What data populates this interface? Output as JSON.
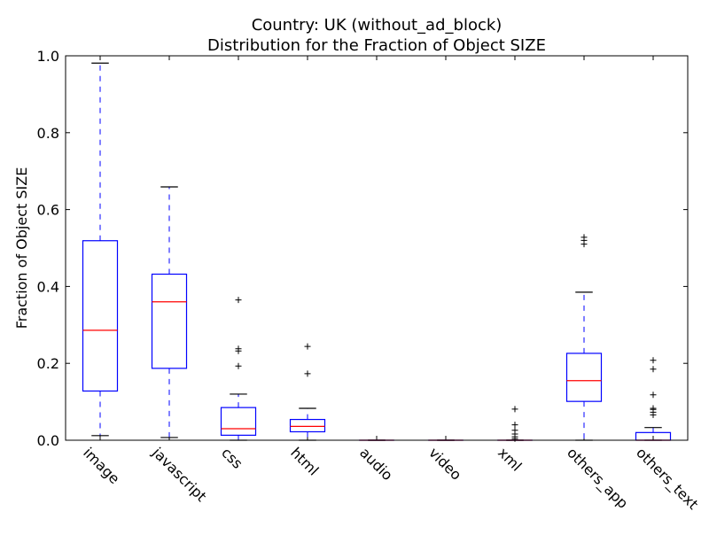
{
  "chart_data": {
    "type": "boxplot",
    "title": "Country: UK  (without_ad_block)",
    "subtitle": "Distribution for the Fraction of Object SIZE",
    "xlabel": "",
    "ylabel": "Fraction of Object SIZE",
    "ylim": [
      0.0,
      1.0
    ],
    "yticks": [
      0.0,
      0.2,
      0.4,
      0.6,
      0.8,
      1.0
    ],
    "ytick_labels": [
      "0.0",
      "0.2",
      "0.4",
      "0.6",
      "0.8",
      "1.0"
    ],
    "grid": false,
    "colors": {
      "box": "#0000ff",
      "median": "#ff0000",
      "whisker": "#0000ff",
      "cap": "#000000",
      "flier": "#000000"
    },
    "categories": [
      "image",
      "javascript",
      "css",
      "html",
      "audio",
      "video",
      "xml",
      "others_app",
      "others_text"
    ],
    "boxes": [
      {
        "label": "image",
        "whislo": 0.012,
        "q1": 0.128,
        "med": 0.286,
        "q3": 0.519,
        "whishi": 0.981,
        "fliers": []
      },
      {
        "label": "javascript",
        "whislo": 0.007,
        "q1": 0.187,
        "med": 0.36,
        "q3": 0.432,
        "whishi": 0.659,
        "fliers": []
      },
      {
        "label": "css",
        "whislo": 0.0,
        "q1": 0.013,
        "med": 0.03,
        "q3": 0.085,
        "whishi": 0.12,
        "fliers": [
          0.193,
          0.232,
          0.238,
          0.365
        ]
      },
      {
        "label": "html",
        "whislo": 0.0,
        "q1": 0.022,
        "med": 0.036,
        "q3": 0.054,
        "whishi": 0.083,
        "fliers": [
          0.173,
          0.244
        ]
      },
      {
        "label": "audio",
        "whislo": 0.0,
        "q1": 0.0,
        "med": 0.0,
        "q3": 0.0,
        "whishi": 0.0,
        "fliers": []
      },
      {
        "label": "video",
        "whislo": 0.0,
        "q1": 0.0,
        "med": 0.0,
        "q3": 0.0,
        "whishi": 0.0,
        "fliers": []
      },
      {
        "label": "xml",
        "whislo": 0.0,
        "q1": 0.0,
        "med": 0.0,
        "q3": 0.0,
        "whishi": 0.0,
        "fliers": [
          0.004,
          0.009,
          0.016,
          0.026,
          0.04,
          0.081
        ]
      },
      {
        "label": "others_app",
        "whislo": 0.0,
        "q1": 0.101,
        "med": 0.155,
        "q3": 0.226,
        "whishi": 0.385,
        "fliers": [
          0.51,
          0.52,
          0.528
        ]
      },
      {
        "label": "others_text",
        "whislo": 0.0,
        "q1": 0.0,
        "med": 0.0,
        "q3": 0.02,
        "whishi": 0.033,
        "fliers": [
          0.066,
          0.073,
          0.08,
          0.083,
          0.118,
          0.185,
          0.208
        ]
      }
    ]
  }
}
